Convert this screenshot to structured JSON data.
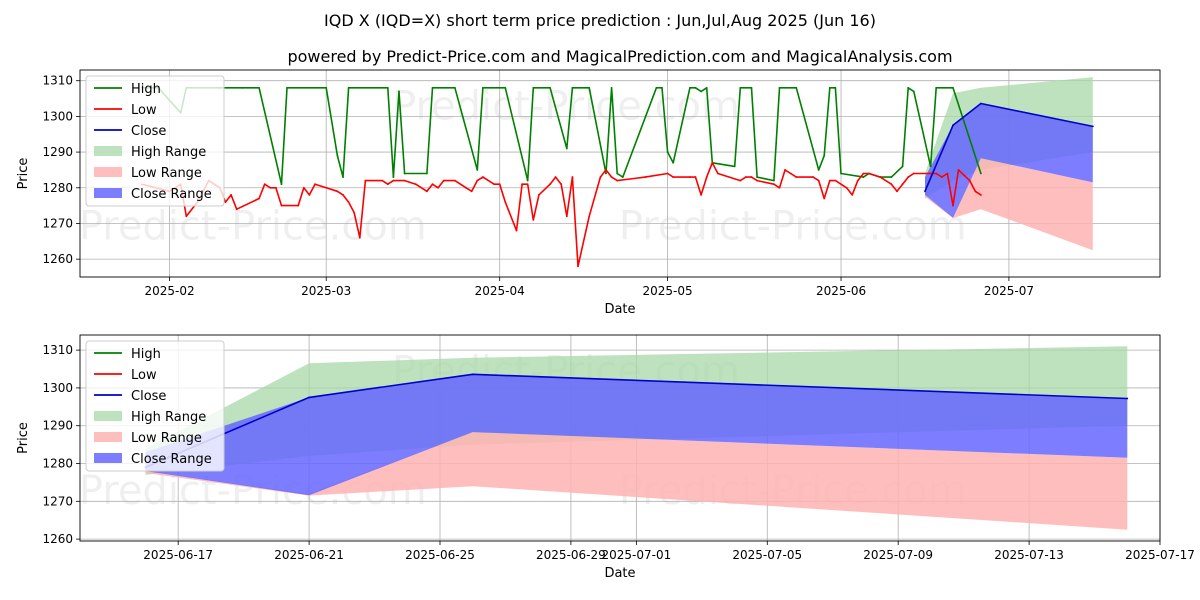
{
  "title": "IQD X (IQD=X) short term price prediction : Jun,Jul,Aug 2025 (Jun 16)",
  "subtitle": "powered by Predict-Price.com and MagicalPrediction.com and MagicalAnalysis.com",
  "watermark": "Predict-Price.com",
  "colors": {
    "high": "#008000",
    "low": "#ff0000",
    "close": "#0000cc",
    "high_range": "#a8d8a8",
    "low_range": "#ffb3b3",
    "close_range": "#6666ff",
    "grid": "#b0b0b0"
  },
  "legend": [
    "High",
    "Low",
    "Close",
    "High Range",
    "Low Range",
    "Close Range"
  ],
  "chart_data": [
    {
      "type": "line",
      "name": "history",
      "xlabel": "Date",
      "ylabel": "Price",
      "xlim": [
        "2025-01-16",
        "2025-07-28"
      ],
      "ylim": [
        1255,
        1313
      ],
      "yticks": [
        1260,
        1270,
        1280,
        1290,
        1300,
        1310
      ],
      "xticks": [
        {
          "date": "2025-02-01",
          "label": "2025-02"
        },
        {
          "date": "2025-03-01",
          "label": "2025-03"
        },
        {
          "date": "2025-04-01",
          "label": "2025-04"
        },
        {
          "date": "2025-05-01",
          "label": "2025-05"
        },
        {
          "date": "2025-06-01",
          "label": "2025-06"
        },
        {
          "date": "2025-07-01",
          "label": "2025-07"
        }
      ],
      "high": [
        [
          "2025-01-27",
          1308
        ],
        [
          "2025-01-30",
          1308
        ],
        [
          "2025-02-03",
          1301
        ],
        [
          "2025-02-04",
          1308
        ],
        [
          "2025-02-10",
          1308
        ],
        [
          "2025-02-14",
          1308
        ],
        [
          "2025-02-17",
          1308
        ],
        [
          "2025-02-21",
          1281
        ],
        [
          "2025-02-22",
          1308
        ],
        [
          "2025-03-01",
          1308
        ],
        [
          "2025-03-03",
          1289
        ],
        [
          "2025-03-04",
          1283
        ],
        [
          "2025-03-05",
          1308
        ],
        [
          "2025-03-12",
          1308
        ],
        [
          "2025-03-13",
          1283
        ],
        [
          "2025-03-14",
          1307
        ],
        [
          "2025-03-15",
          1284
        ],
        [
          "2025-03-19",
          1284
        ],
        [
          "2025-03-20",
          1308
        ],
        [
          "2025-03-24",
          1308
        ],
        [
          "2025-03-28",
          1285
        ],
        [
          "2025-03-29",
          1308
        ],
        [
          "2025-04-02",
          1308
        ],
        [
          "2025-04-06",
          1282
        ],
        [
          "2025-04-07",
          1308
        ],
        [
          "2025-04-10",
          1308
        ],
        [
          "2025-04-13",
          1291
        ],
        [
          "2025-04-14",
          1308
        ],
        [
          "2025-04-17",
          1308
        ],
        [
          "2025-04-20",
          1284
        ],
        [
          "2025-04-21",
          1308
        ],
        [
          "2025-04-22",
          1284
        ],
        [
          "2025-04-23",
          1283
        ],
        [
          "2025-04-29",
          1308
        ],
        [
          "2025-04-30",
          1308
        ],
        [
          "2025-05-01",
          1290
        ],
        [
          "2025-05-02",
          1287
        ],
        [
          "2025-05-05",
          1308
        ],
        [
          "2025-05-06",
          1308
        ],
        [
          "2025-05-07",
          1307
        ],
        [
          "2025-05-08",
          1308
        ],
        [
          "2025-05-09",
          1287
        ],
        [
          "2025-05-13",
          1286
        ],
        [
          "2025-05-14",
          1308
        ],
        [
          "2025-05-16",
          1308
        ],
        [
          "2025-05-17",
          1283
        ],
        [
          "2025-05-20",
          1282
        ],
        [
          "2025-05-21",
          1308
        ],
        [
          "2025-05-24",
          1308
        ],
        [
          "2025-05-28",
          1285
        ],
        [
          "2025-05-29",
          1289
        ],
        [
          "2025-05-30",
          1308
        ],
        [
          "2025-05-31",
          1308
        ],
        [
          "2025-06-01",
          1284
        ],
        [
          "2025-06-05",
          1283
        ],
        [
          "2025-06-06",
          1284
        ],
        [
          "2025-06-08",
          1283
        ],
        [
          "2025-06-10",
          1283
        ],
        [
          "2025-06-12",
          1286
        ],
        [
          "2025-06-13",
          1308
        ],
        [
          "2025-06-14",
          1307
        ],
        [
          "2025-06-17",
          1286
        ],
        [
          "2025-06-18",
          1308
        ],
        [
          "2025-06-21",
          1308
        ],
        [
          "2025-06-26",
          1284
        ]
      ],
      "low": [
        [
          "2025-01-27",
          1281
        ],
        [
          "2025-02-01",
          1279
        ],
        [
          "2025-02-03",
          1281
        ],
        [
          "2025-02-04",
          1272
        ],
        [
          "2025-02-06",
          1276
        ],
        [
          "2025-02-08",
          1282
        ],
        [
          "2025-02-10",
          1280
        ],
        [
          "2025-02-11",
          1276
        ],
        [
          "2025-02-12",
          1278
        ],
        [
          "2025-02-13",
          1274
        ],
        [
          "2025-02-17",
          1277
        ],
        [
          "2025-02-18",
          1281
        ],
        [
          "2025-02-19",
          1280
        ],
        [
          "2025-02-20",
          1280
        ],
        [
          "2025-02-21",
          1275
        ],
        [
          "2025-02-24",
          1275
        ],
        [
          "2025-02-25",
          1280
        ],
        [
          "2025-02-26",
          1278
        ],
        [
          "2025-02-27",
          1281
        ],
        [
          "2025-03-01",
          1280
        ],
        [
          "2025-03-03",
          1279
        ],
        [
          "2025-03-04",
          1278
        ],
        [
          "2025-03-05",
          1276
        ],
        [
          "2025-03-06",
          1273
        ],
        [
          "2025-03-07",
          1266
        ],
        [
          "2025-03-08",
          1282
        ],
        [
          "2025-03-11",
          1282
        ],
        [
          "2025-03-12",
          1281
        ],
        [
          "2025-03-13",
          1282
        ],
        [
          "2025-03-14",
          1282
        ],
        [
          "2025-03-15",
          1282
        ],
        [
          "2025-03-17",
          1281
        ],
        [
          "2025-03-19",
          1279
        ],
        [
          "2025-03-20",
          1281
        ],
        [
          "2025-03-21",
          1280
        ],
        [
          "2025-03-22",
          1282
        ],
        [
          "2025-03-24",
          1282
        ],
        [
          "2025-03-26",
          1280
        ],
        [
          "2025-03-27",
          1279
        ],
        [
          "2025-03-28",
          1282
        ],
        [
          "2025-03-29",
          1283
        ],
        [
          "2025-03-31",
          1281
        ],
        [
          "2025-04-01",
          1281
        ],
        [
          "2025-04-02",
          1276
        ],
        [
          "2025-04-04",
          1268
        ],
        [
          "2025-04-05",
          1281
        ],
        [
          "2025-04-06",
          1281
        ],
        [
          "2025-04-07",
          1271
        ],
        [
          "2025-04-08",
          1278
        ],
        [
          "2025-04-10",
          1281
        ],
        [
          "2025-04-11",
          1283
        ],
        [
          "2025-04-12",
          1281
        ],
        [
          "2025-04-13",
          1272
        ],
        [
          "2025-04-14",
          1283
        ],
        [
          "2025-04-15",
          1258
        ],
        [
          "2025-04-17",
          1272
        ],
        [
          "2025-04-19",
          1283
        ],
        [
          "2025-04-20",
          1285
        ],
        [
          "2025-04-21",
          1283
        ],
        [
          "2025-04-22",
          1282
        ],
        [
          "2025-04-27",
          1283
        ],
        [
          "2025-05-01",
          1284
        ],
        [
          "2025-05-02",
          1283
        ],
        [
          "2025-05-05",
          1283
        ],
        [
          "2025-05-06",
          1283
        ],
        [
          "2025-05-07",
          1278
        ],
        [
          "2025-05-08",
          1283
        ],
        [
          "2025-05-09",
          1287
        ],
        [
          "2025-05-10",
          1284
        ],
        [
          "2025-05-14",
          1282
        ],
        [
          "2025-05-15",
          1283
        ],
        [
          "2025-05-16",
          1283
        ],
        [
          "2025-05-17",
          1282
        ],
        [
          "2025-05-20",
          1281
        ],
        [
          "2025-05-21",
          1280
        ],
        [
          "2025-05-22",
          1285
        ],
        [
          "2025-05-23",
          1284
        ],
        [
          "2025-05-24",
          1283
        ],
        [
          "2025-05-27",
          1283
        ],
        [
          "2025-05-28",
          1282
        ],
        [
          "2025-05-29",
          1277
        ],
        [
          "2025-05-30",
          1282
        ],
        [
          "2025-05-31",
          1282
        ],
        [
          "2025-06-02",
          1280
        ],
        [
          "2025-06-03",
          1278
        ],
        [
          "2025-06-04",
          1282
        ],
        [
          "2025-06-05",
          1284
        ],
        [
          "2025-06-06",
          1284
        ],
        [
          "2025-06-08",
          1283
        ],
        [
          "2025-06-10",
          1281
        ],
        [
          "2025-06-11",
          1279
        ],
        [
          "2025-06-12",
          1281
        ],
        [
          "2025-06-13",
          1283
        ],
        [
          "2025-06-14",
          1284
        ],
        [
          "2025-06-17",
          1284
        ],
        [
          "2025-06-18",
          1284
        ],
        [
          "2025-06-19",
          1283
        ],
        [
          "2025-06-20",
          1284
        ],
        [
          "2025-06-21",
          1275
        ],
        [
          "2025-06-22",
          1285
        ],
        [
          "2025-06-24",
          1282
        ],
        [
          "2025-06-25",
          1279
        ],
        [
          "2025-06-26",
          1278
        ]
      ],
      "forecast": {
        "dates": [
          "2025-06-16",
          "2025-06-21",
          "2025-06-26",
          "2025-07-16"
        ],
        "close": [
          1279,
          1297.5,
          1303.6,
          1297.2
        ],
        "high_upper": [
          1284,
          1306.5,
          1308,
          1311
        ],
        "high_lower": [
          1277,
          1282,
          1285,
          1290
        ],
        "low_upper": [
          1278,
          1272,
          1288.3,
          1281.5
        ],
        "low_lower": [
          1277.5,
          1271.5,
          1274,
          1262.5
        ],
        "close_upper": [
          1283,
          1297.5,
          1303.6,
          1297.2
        ],
        "close_lower": [
          1278,
          1271.6,
          1288.3,
          1281.5
        ]
      }
    },
    {
      "type": "area",
      "name": "forecast-zoom",
      "xlabel": "Date",
      "ylabel": "Price",
      "xlim": [
        "2025-06-14",
        "2025-07-17"
      ],
      "ylim": [
        1259.5,
        1314
      ],
      "yticks": [
        1260,
        1270,
        1280,
        1290,
        1300,
        1310
      ],
      "xticks": [
        {
          "date": "2025-06-17",
          "label": "2025-06-17"
        },
        {
          "date": "2025-06-21",
          "label": "2025-06-21"
        },
        {
          "date": "2025-06-25",
          "label": "2025-06-25"
        },
        {
          "date": "2025-06-29",
          "label": "2025-06-29"
        },
        {
          "date": "2025-07-01",
          "label": "2025-07-01"
        },
        {
          "date": "2025-07-05",
          "label": "2025-07-05"
        },
        {
          "date": "2025-07-09",
          "label": "2025-07-09"
        },
        {
          "date": "2025-07-13",
          "label": "2025-07-13"
        },
        {
          "date": "2025-07-17",
          "label": "2025-07-17"
        }
      ],
      "forecast": {
        "dates": [
          "2025-06-16",
          "2025-06-21",
          "2025-06-26",
          "2025-07-16"
        ],
        "close": [
          1279,
          1297.5,
          1303.6,
          1297.2
        ],
        "high_upper": [
          1284,
          1306.5,
          1308,
          1311
        ],
        "high_lower": [
          1277,
          1282,
          1285,
          1290
        ],
        "low_upper": [
          1278,
          1272,
          1288.3,
          1281.5
        ],
        "low_lower": [
          1277.5,
          1271.5,
          1274,
          1262.5
        ],
        "close_upper": [
          1283,
          1297.5,
          1303.6,
          1297.2
        ],
        "close_lower": [
          1278,
          1271.6,
          1288.3,
          1281.5
        ]
      }
    }
  ]
}
